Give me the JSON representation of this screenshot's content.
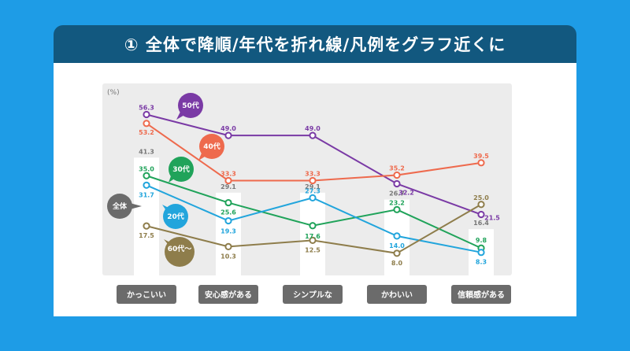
{
  "title": "① 全体で降順/年代を折れ線/凡例をグラフ近くに",
  "chart_data": {
    "type": "bar",
    "unit_label": "(%)",
    "categories": [
      "かっこいい",
      "安心感がある",
      "シンプルな",
      "かわいい",
      "信頼感がある"
    ],
    "bar_series": {
      "name": "全体",
      "values": [
        41.3,
        29.1,
        29.1,
        26.7,
        16.4
      ]
    },
    "series": [
      {
        "name": "50代",
        "color": "#7a3aa5",
        "values": [
          56.3,
          49.0,
          49.0,
          32.2,
          21.5
        ]
      },
      {
        "name": "40代",
        "color": "#ee6a4d",
        "values": [
          53.2,
          33.3,
          33.3,
          35.2,
          39.5
        ]
      },
      {
        "name": "30代",
        "color": "#20a35a",
        "values": [
          35.0,
          25.6,
          17.6,
          23.2,
          9.8
        ]
      },
      {
        "name": "20代",
        "color": "#22a5dc",
        "values": [
          31.7,
          19.3,
          27.3,
          14.0,
          8.3
        ]
      },
      {
        "name": "60代～",
        "color": "#8e7d4b",
        "values": [
          17.5,
          10.3,
          12.5,
          8.0,
          25.0
        ]
      }
    ],
    "bar_label_color": "#777777",
    "plot_background": "#ececec",
    "tick_label_background": "#6b6b6b",
    "ylim": [
      0,
      60
    ],
    "grid": false,
    "legend": "callouts next to lines"
  }
}
